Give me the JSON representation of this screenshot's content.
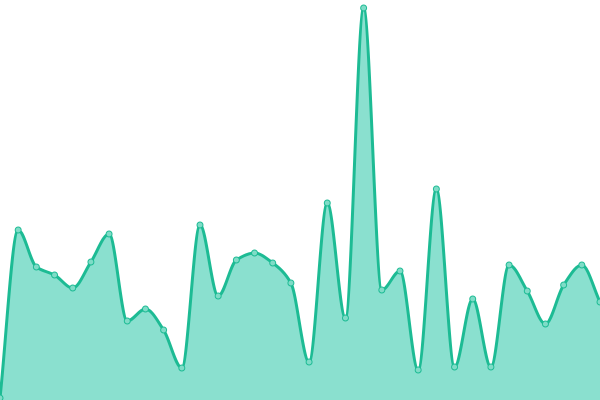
{
  "chart_data": {
    "type": "area",
    "x": [
      0,
      1,
      2,
      3,
      4,
      5,
      6,
      7,
      8,
      9,
      10,
      11,
      12,
      13,
      14,
      15,
      16,
      17,
      18,
      19,
      20,
      21,
      22,
      23,
      24,
      25,
      26,
      27,
      28,
      29,
      30,
      31,
      32,
      33
    ],
    "values": [
      2,
      170,
      133,
      125,
      112,
      138,
      166,
      79,
      91,
      70,
      32,
      175,
      104,
      140,
      147,
      137,
      117,
      38,
      197,
      82,
      392,
      110,
      129,
      30,
      211,
      33,
      101,
      33,
      135,
      109,
      76,
      115,
      135,
      98
    ],
    "ylim": [
      0,
      400
    ],
    "grid": false,
    "colors": {
      "line": "#1dbb94",
      "fill": "#8ae0cf",
      "point": "#7fdcc7"
    }
  }
}
